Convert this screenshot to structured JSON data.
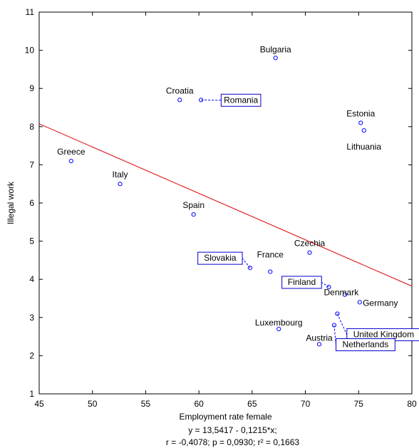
{
  "chart_data": {
    "type": "scatter",
    "xlabel": "Employment rate female",
    "ylabel": "Illegal work",
    "xlim": [
      45,
      80
    ],
    "ylim": [
      1,
      11
    ],
    "xticks": [
      "45",
      "50",
      "55",
      "60",
      "65",
      "70",
      "75",
      "80"
    ],
    "yticks": [
      "1",
      "2",
      "3",
      "4",
      "5",
      "6",
      "7",
      "8",
      "9",
      "10",
      "11"
    ],
    "grid": false,
    "point_color": "#0000ff",
    "line_color": "#e00000",
    "points": [
      {
        "name": "Bulgaria",
        "x": 67.2,
        "y": 9.8,
        "boxed": false
      },
      {
        "name": "Croatia",
        "x": 58.2,
        "y": 8.7,
        "boxed": false
      },
      {
        "name": "Romania",
        "x": 60.2,
        "y": 8.7,
        "boxed": true
      },
      {
        "name": "Estonia",
        "x": 75.2,
        "y": 8.1,
        "boxed": false
      },
      {
        "name": "Lithuania",
        "x": 75.5,
        "y": 7.9,
        "boxed": false
      },
      {
        "name": "Greece",
        "x": 48.0,
        "y": 7.1,
        "boxed": false
      },
      {
        "name": "Italy",
        "x": 52.6,
        "y": 6.5,
        "boxed": false
      },
      {
        "name": "Spain",
        "x": 59.5,
        "y": 5.7,
        "boxed": false
      },
      {
        "name": "Czechia",
        "x": 70.4,
        "y": 4.7,
        "boxed": false
      },
      {
        "name": "Slovakia",
        "x": 64.8,
        "y": 4.3,
        "boxed": true
      },
      {
        "name": "France",
        "x": 66.7,
        "y": 4.2,
        "boxed": false
      },
      {
        "name": "Finland",
        "x": 72.2,
        "y": 3.8,
        "boxed": true
      },
      {
        "name": "Denmark",
        "x": 73.7,
        "y": 3.6,
        "boxed": false
      },
      {
        "name": "Germany",
        "x": 75.1,
        "y": 3.4,
        "boxed": false
      },
      {
        "name": "United Kingdom",
        "x": 73.0,
        "y": 3.1,
        "boxed": true
      },
      {
        "name": "Luxembourg",
        "x": 67.5,
        "y": 2.7,
        "boxed": false
      },
      {
        "name": "Netherlands",
        "x": 72.7,
        "y": 2.8,
        "boxed": true
      },
      {
        "name": "Austria",
        "x": 71.3,
        "y": 2.3,
        "boxed": false
      }
    ],
    "regression": {
      "intercept": 13.5417,
      "slope": -0.1215,
      "equation": "y = 13,5417 - 0,1215*x;",
      "stats": "r = -0,4078; p = 0,0930; r² = 0,1663"
    }
  }
}
